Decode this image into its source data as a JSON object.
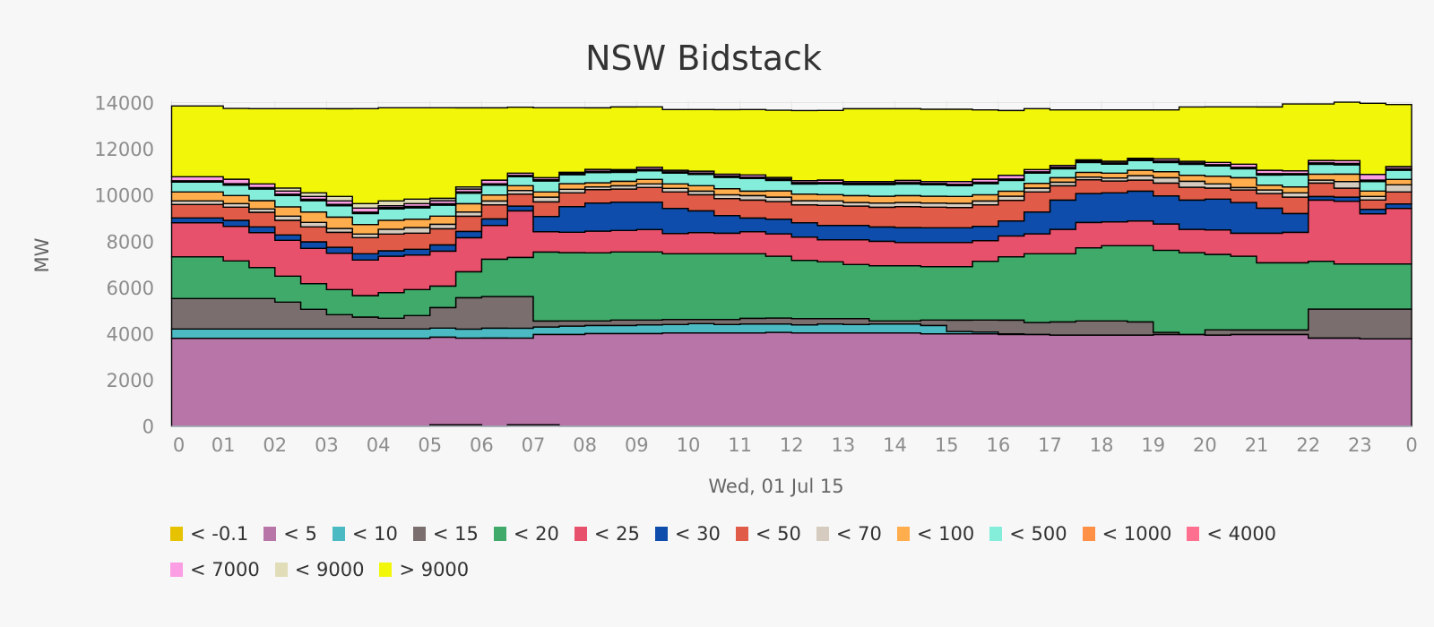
{
  "chart_data": {
    "type": "area",
    "subtype": "stacked-step",
    "title": "NSW Bidstack",
    "xlabel": "Wed, 01 Jul 15",
    "ylabel": "MW",
    "ylim": [
      0,
      14000
    ],
    "y_ticks": [
      0,
      2000,
      4000,
      6000,
      8000,
      10000,
      12000,
      14000
    ],
    "x_range_hours": [
      0,
      24
    ],
    "x_step_hours": 0.5,
    "x_tick_labels": [
      "0",
      "01",
      "02",
      "03",
      "04",
      "05",
      "06",
      "07",
      "08",
      "09",
      "10",
      "11",
      "12",
      "13",
      "14",
      "15",
      "16",
      "17",
      "18",
      "19",
      "20",
      "21",
      "22",
      "23",
      "0"
    ],
    "legend_placement": "bottom",
    "series": [
      {
        "name": "< -0.1",
        "color": "#e6c200",
        "values": [
          0,
          0,
          0,
          0,
          0,
          0,
          0,
          0,
          0,
          0,
          60,
          60,
          0,
          60,
          60,
          0,
          0,
          0,
          0,
          0,
          0,
          0,
          0,
          0,
          0,
          0,
          0,
          0,
          0,
          0,
          0,
          0,
          0,
          0,
          0,
          0,
          0,
          0,
          0,
          0,
          0,
          0,
          0,
          0,
          0,
          0,
          0,
          0
        ]
      },
      {
        "name": "< 5",
        "color": "#b875a7",
        "values": [
          3799,
          3799,
          3799,
          3799,
          3799,
          3799,
          3799,
          3799,
          3799,
          3799,
          3790,
          3750,
          3811,
          3750,
          3906,
          3966,
          4005,
          4005,
          4005,
          4031,
          4031,
          4031,
          4031,
          4057,
          4031,
          4031,
          4031,
          4031,
          4031,
          3992,
          3992,
          3992,
          3966,
          3966,
          3941,
          3941,
          3941,
          3941,
          3966,
          3966,
          3941,
          3966,
          3966,
          3966,
          3811,
          3811,
          3773,
          3773
        ]
      },
      {
        "name": "< 10",
        "color": "#4bbac2",
        "values": [
          401,
          401,
          401,
          401,
          401,
          401,
          401,
          401,
          401,
          401,
          388,
          388,
          426,
          426,
          323,
          362,
          349,
          349,
          375,
          362,
          401,
          362,
          388,
          362,
          349,
          388,
          362,
          388,
          388,
          362,
          103,
          78,
          26,
          0,
          0,
          0,
          0,
          0,
          0,
          0,
          0,
          0,
          0,
          0,
          0,
          0,
          0,
          0
        ]
      },
      {
        "name": "< 15",
        "color": "#7a6e6e",
        "values": [
          1318,
          1318,
          1318,
          1318,
          1163,
          853,
          620,
          517,
          465,
          581,
          891,
          1357,
          1370,
          1370,
          258,
          220,
          194,
          233,
          207,
          220,
          181,
          220,
          245,
          258,
          271,
          233,
          258,
          129,
          129,
          233,
          491,
          517,
          594,
          517,
          568,
          607,
          607,
          568,
          90,
          0,
          220,
          194,
          194,
          194,
          1253,
          1253,
          1292,
          1292
        ]
      },
      {
        "name": "< 20",
        "color": "#40aa6a",
        "values": [
          1809,
          1809,
          1628,
          1344,
          1124,
          1111,
          1085,
          930,
          1111,
          1124,
          930,
          1124,
          1615,
          1693,
          2985,
          2959,
          2946,
          2946,
          2946,
          2842,
          2842,
          2842,
          2791,
          2674,
          2519,
          2455,
          2339,
          2390,
          2390,
          2313,
          2313,
          2545,
          2739,
          2972,
          2946,
          3165,
          3256,
          3295,
          3553,
          3540,
          3269,
          3191,
          2907,
          2907,
          2067,
          1951,
          1951,
          1951
        ]
      },
      {
        "name": "< 25",
        "color": "#e8516b",
        "values": [
          1473,
          1473,
          1499,
          1512,
          1550,
          1525,
          1576,
          1537,
          1576,
          1499,
          1512,
          1473,
          1460,
          2016,
          879,
          879,
          943,
          930,
          969,
          879,
          917,
          891,
          956,
          969,
          1008,
          956,
          1072,
          1059,
          1008,
          1047,
          1047,
          891,
          904,
          866,
          1059,
          1098,
          1034,
          1072,
          1137,
          1008,
          1059,
          995,
          1279,
          1318,
          2649,
          2713,
          2171,
          2403
        ]
      },
      {
        "name": "< 30",
        "color": "#0e4dab",
        "values": [
          207,
          207,
          258,
          245,
          233,
          284,
          258,
          271,
          233,
          245,
          271,
          271,
          284,
          207,
          659,
          1111,
          1214,
          1227,
          1189,
          1085,
          943,
          762,
          594,
          633,
          620,
          620,
          620,
          620,
          646,
          633,
          633,
          620,
          646,
          943,
          1266,
          1253,
          1253,
          1292,
          1214,
          1266,
          1331,
          1331,
          1085,
          814,
          155,
          181,
          194,
          194
        ]
      },
      {
        "name": "< 50",
        "color": "#e05c48",
        "values": [
          581,
          581,
          568,
          633,
          633,
          646,
          646,
          698,
          724,
          698,
          698,
          659,
          607,
          517,
          633,
          594,
          581,
          568,
          633,
          711,
          698,
          736,
          775,
          762,
          775,
          866,
          840,
          853,
          904,
          891,
          879,
          930,
          891,
          866,
          620,
          594,
          517,
          478,
          556,
          556,
          478,
          543,
          633,
          711,
          581,
          388,
          401,
          517
        ]
      },
      {
        "name": "< 70",
        "color": "#d5cbbf",
        "values": [
          155,
          155,
          155,
          142,
          181,
          194,
          168,
          155,
          207,
          245,
          194,
          181,
          168,
          155,
          207,
          155,
          116,
          142,
          155,
          155,
          155,
          168,
          194,
          194,
          181,
          194,
          155,
          181,
          181,
          181,
          181,
          168,
          181,
          168,
          155,
          116,
          129,
          194,
          233,
          258,
          181,
          103,
          155,
          181,
          129,
          284,
          155,
          310
        ]
      },
      {
        "name": "< 100",
        "color": "#ffad4d",
        "values": [
          388,
          388,
          349,
          362,
          401,
          452,
          491,
          413,
          388,
          362,
          349,
          362,
          258,
          207,
          220,
          245,
          181,
          194,
          194,
          194,
          233,
          258,
          194,
          271,
          284,
          271,
          297,
          297,
          297,
          297,
          297,
          271,
          220,
          207,
          194,
          207,
          207,
          233,
          258,
          258,
          336,
          426,
          207,
          258,
          258,
          323,
          233,
          233
        ]
      },
      {
        "name": "< 500",
        "color": "#85eedb",
        "values": [
          426,
          426,
          452,
          504,
          491,
          491,
          491,
          478,
          491,
          491,
          478,
          452,
          426,
          388,
          478,
          388,
          439,
          388,
          375,
          465,
          491,
          491,
          543,
          452,
          439,
          465,
          478,
          504,
          504,
          491,
          465,
          478,
          465,
          439,
          388,
          426,
          388,
          413,
          401,
          478,
          439,
          388,
          439,
          517,
          426,
          401,
          413,
          401
        ]
      },
      {
        "name": "< 1000",
        "color": "#ff9046",
        "values": [
          20,
          20,
          20,
          20,
          20,
          20,
          20,
          20,
          20,
          20,
          20,
          20,
          20,
          20,
          20,
          20,
          20,
          20,
          20,
          20,
          20,
          20,
          20,
          20,
          20,
          20,
          20,
          20,
          20,
          20,
          20,
          20,
          20,
          20,
          20,
          20,
          20,
          20,
          20,
          20,
          20,
          20,
          20,
          20,
          20,
          20,
          20,
          20
        ]
      },
      {
        "name": "< 4000",
        "color": "#ff6f8f",
        "values": [
          40,
          40,
          40,
          40,
          40,
          40,
          40,
          40,
          40,
          40,
          40,
          40,
          40,
          40,
          40,
          40,
          40,
          40,
          40,
          40,
          40,
          40,
          40,
          40,
          40,
          40,
          40,
          40,
          40,
          40,
          40,
          40,
          40,
          40,
          40,
          40,
          40,
          40,
          40,
          40,
          40,
          40,
          40,
          40,
          40,
          40,
          40,
          40
        ]
      },
      {
        "name": "< 7000",
        "color": "#fb9ee3",
        "values": [
          173,
          173,
          198,
          160,
          134,
          121,
          147,
          173,
          82,
          121,
          134,
          121,
          160,
          95,
          82,
          43,
          82,
          56,
          95,
          69,
          82,
          82,
          95,
          69,
          82,
          108,
          69,
          69,
          95,
          82,
          121,
          134,
          160,
          95,
          82,
          56,
          69,
          43,
          95,
          69,
          95,
          134,
          147,
          121,
          108,
          121,
          250,
          95
        ]
      },
      {
        "name": "< 9000",
        "color": "#e0ddb8",
        "values": [
          0,
          0,
          0,
          0,
          129,
          155,
          194,
          194,
          207,
          194,
          103,
          90,
          0,
          0,
          0,
          0,
          0,
          0,
          0,
          0,
          0,
          0,
          0,
          0,
          0,
          0,
          0,
          0,
          0,
          0,
          0,
          0,
          0,
          0,
          0,
          0,
          0,
          0,
          0,
          0,
          0,
          0,
          0,
          0,
          0,
          0,
          0,
          0
        ]
      },
      {
        "name": "> 9000",
        "color": "#f2f70a",
        "values": [
          3062,
          3062,
          3062,
          3256,
          3437,
          3643,
          3798,
          4109,
          4031,
          3954,
          3915,
          3424,
          3127,
          2855,
          3023,
          2791,
          2662,
          2713,
          2610,
          2623,
          2662,
          2791,
          2830,
          2907,
          3036,
          3010,
          3153,
          3153,
          3101,
          3127,
          3127,
          2998,
          2804,
          2636,
          2403,
          2158,
          2222,
          2093,
          2119,
          2351,
          2403,
          2481,
          2739,
          2894,
          2442,
          2532,
          3075,
          2687
        ]
      }
    ]
  }
}
